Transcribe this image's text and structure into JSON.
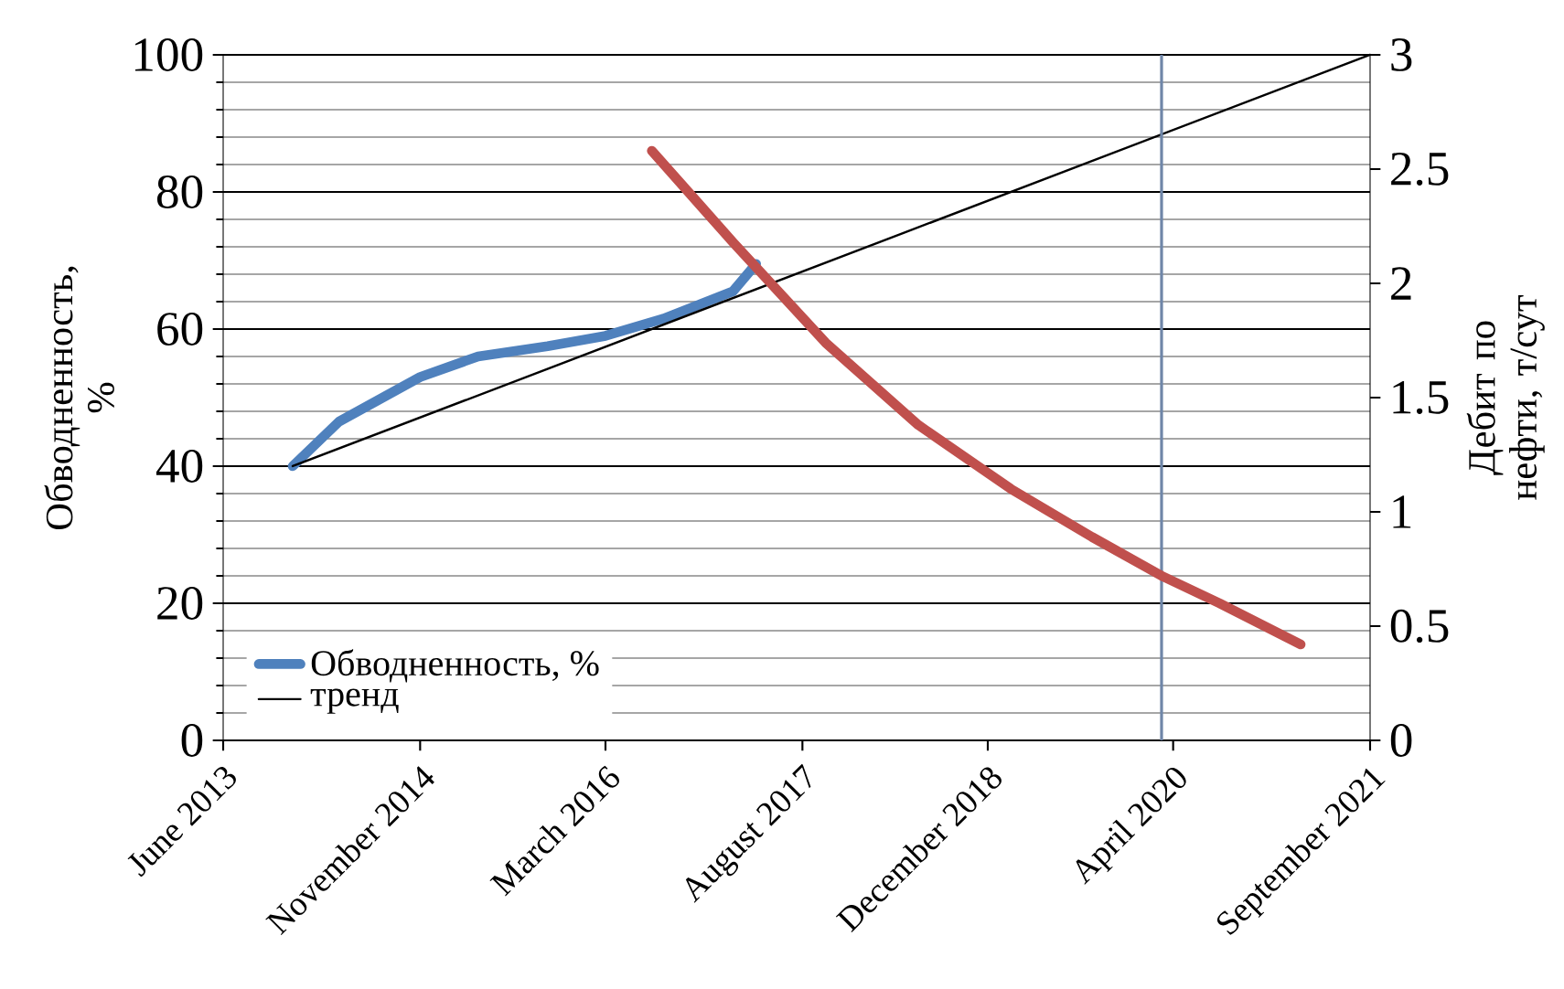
{
  "chart_data": {
    "type": "line",
    "ylabel": "Обводненность, %",
    "y2label": "Дебит по нефти, т/сут",
    "xlim": [
      "2013-06",
      "2021-09"
    ],
    "xticks": [
      {
        "value": "2013-06",
        "label": "June 2013"
      },
      {
        "value": "2014-11",
        "label": "November 2014"
      },
      {
        "value": "2016-03",
        "label": "March 2016"
      },
      {
        "value": "2017-08",
        "label": "August 2017"
      },
      {
        "value": "2018-12",
        "label": "December 2018"
      },
      {
        "value": "2020-04",
        "label": "April 2020"
      },
      {
        "value": "2021-09",
        "label": "September 2021"
      }
    ],
    "ylim": [
      0,
      100
    ],
    "yticks": [
      0,
      20,
      40,
      60,
      80,
      100
    ],
    "y2lim": [
      0,
      3
    ],
    "y2ticks": [
      0,
      0.5,
      1,
      1.5,
      2,
      2.5,
      3
    ],
    "grid": "y",
    "legend": "bottom left",
    "marker": "none",
    "line_style": "solid",
    "series": [
      {
        "name": "Обводненность, %",
        "color": "#4f81bd",
        "x": [
          "2013-12",
          "2014-04",
          "2014-11",
          "2015-04",
          "2015-10",
          "2016-03",
          "2016-08",
          "2017-02",
          "2017-04"
        ],
        "values": [
          40,
          46.5,
          53,
          56,
          57.5,
          59,
          61.5,
          65.5,
          69.5
        ]
      },
      {
        "name": "тренд",
        "color": "#000000",
        "x": [
          "2013-12",
          "2021-09"
        ],
        "values": [
          40,
          100
        ]
      },
      {
        "color": "#c0504d",
        "axis": "y2",
        "x": [
          "2016-07",
          "2017-02",
          "2017-10",
          "2018-06",
          "2019-02",
          "2019-09",
          "2020-03",
          "2020-08",
          "2021-03"
        ],
        "values": [
          2.58,
          2.18,
          1.74,
          1.38,
          1.1,
          0.89,
          0.72,
          0.6,
          0.42
        ]
      }
    ],
    "ref_lines": [
      {
        "axis": "x",
        "value": "2020-03",
        "color": "#6f86a8"
      }
    ]
  }
}
